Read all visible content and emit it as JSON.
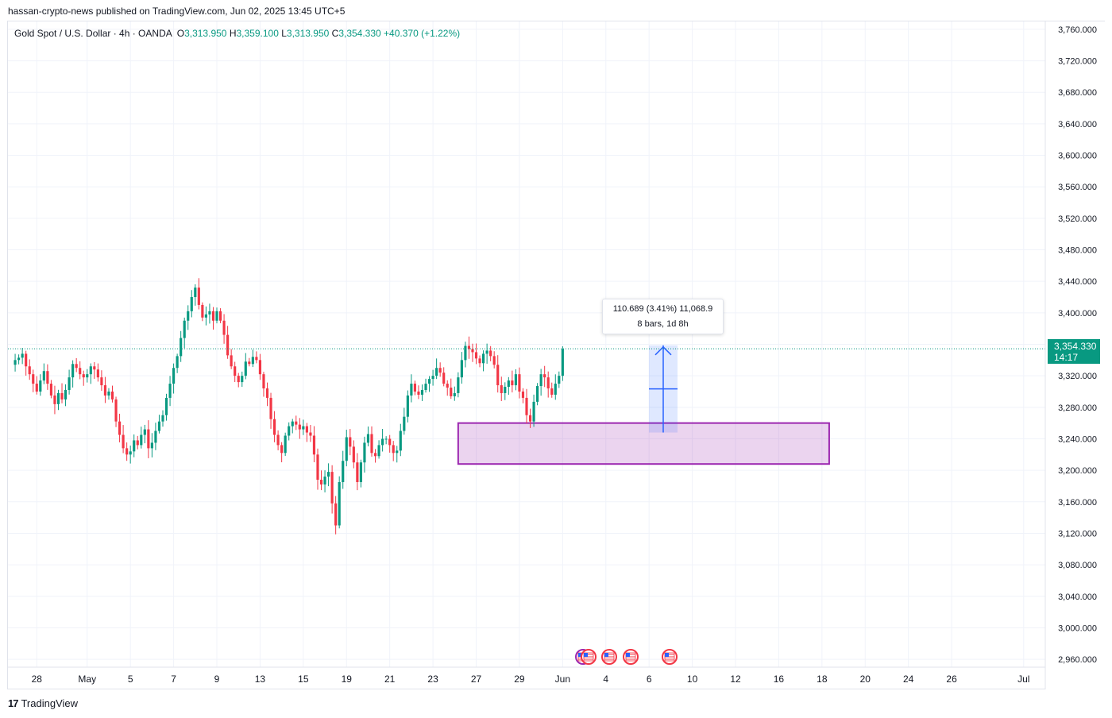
{
  "header": {
    "published_line": "hassan-crypto-news published on TradingView.com, Jun 02, 2025 13:45 UTC+5"
  },
  "legend": {
    "symbol": "Gold Spot / U.S. Dollar · 4h · OANDA",
    "o_label": "O",
    "o_value": "3,313.950",
    "h_label": "H",
    "h_value": "3,359.100",
    "l_label": "L",
    "l_value": "3,313.950",
    "c_label": "C",
    "c_value": "3,354.330",
    "change": "+40.370 (+1.22%)"
  },
  "measure": {
    "line1": "110.689 (3.41%) 11,068.9",
    "line2": "8 bars, 1d 8h",
    "from_price": 3248,
    "to_price": 3358.7
  },
  "zone": {
    "top": 3260,
    "bottom": 3208,
    "color": "#9c27b0"
  },
  "price_tag": {
    "price": "3,354.330",
    "countdown": "14:17",
    "color": "#089981"
  },
  "footer": {
    "brand": "TradingView"
  },
  "colors": {
    "up": "#089981",
    "down": "#f23645",
    "grid": "#f0f3fa",
    "measure": "#2962ff"
  },
  "chart_data": {
    "type": "candlestick",
    "ylim": [
      2950,
      3770
    ],
    "y_ticks": [
      "3,760.000",
      "3,720.000",
      "3,680.000",
      "3,640.000",
      "3,600.000",
      "3,560.000",
      "3,520.000",
      "3,480.000",
      "3,440.000",
      "3,400.000",
      "3,360.000",
      "3,320.000",
      "3,280.000",
      "3,240.000",
      "3,200.000",
      "3,160.000",
      "3,120.000",
      "3,080.000",
      "3,040.000",
      "3,000.000",
      "2,960.000"
    ],
    "y_tick_values": [
      3760,
      3720,
      3680,
      3640,
      3600,
      3560,
      3520,
      3480,
      3440,
      3400,
      3360,
      3320,
      3280,
      3240,
      3200,
      3160,
      3120,
      3080,
      3040,
      3000,
      2960
    ],
    "x_ticks": [
      "28",
      "May",
      "5",
      "7",
      "9",
      "13",
      "15",
      "19",
      "21",
      "23",
      "27",
      "29",
      "Jun",
      "4",
      "6",
      "10",
      "12",
      "16",
      "18",
      "20",
      "24",
      "26",
      "Jul"
    ],
    "x_tick_slots": [
      6,
      20,
      32,
      44,
      56,
      68,
      80,
      92,
      104,
      116,
      128,
      140,
      152,
      164,
      176,
      188,
      200,
      212,
      224,
      236,
      248,
      260,
      280
    ],
    "closes": [
      3340,
      3343,
      3348,
      3332,
      3322,
      3310,
      3300,
      3314,
      3326,
      3310,
      3295,
      3284,
      3298,
      3290,
      3302,
      3318,
      3335,
      3330,
      3322,
      3318,
      3322,
      3332,
      3328,
      3318,
      3308,
      3295,
      3300,
      3290,
      3262,
      3245,
      3228,
      3220,
      3224,
      3238,
      3232,
      3245,
      3252,
      3228,
      3235,
      3250,
      3262,
      3270,
      3292,
      3310,
      3330,
      3345,
      3368,
      3390,
      3402,
      3420,
      3432,
      3410,
      3394,
      3398,
      3402,
      3390,
      3402,
      3390,
      3372,
      3346,
      3332,
      3320,
      3312,
      3320,
      3338,
      3335,
      3344,
      3340,
      3322,
      3304,
      3292,
      3265,
      3245,
      3232,
      3222,
      3244,
      3256,
      3262,
      3258,
      3252,
      3256,
      3248,
      3244,
      3220,
      3188,
      3182,
      3192,
      3198,
      3158,
      3130,
      3185,
      3212,
      3242,
      3230,
      3210,
      3185,
      3210,
      3235,
      3246,
      3222,
      3218,
      3232,
      3240,
      3240,
      3232,
      3222,
      3225,
      3250,
      3268,
      3295,
      3310,
      3300,
      3296,
      3302,
      3310,
      3316,
      3320,
      3330,
      3324,
      3310,
      3305,
      3294,
      3298,
      3318,
      3340,
      3358,
      3354,
      3350,
      3342,
      3336,
      3348,
      3352,
      3345,
      3334,
      3308,
      3298,
      3306,
      3314,
      3308,
      3322,
      3300,
      3292,
      3270,
      3262,
      3287,
      3307,
      3322,
      3318,
      3304,
      3296,
      3310,
      3320,
      3354
    ],
    "x_slot_range": [
      -2,
      286
    ]
  }
}
